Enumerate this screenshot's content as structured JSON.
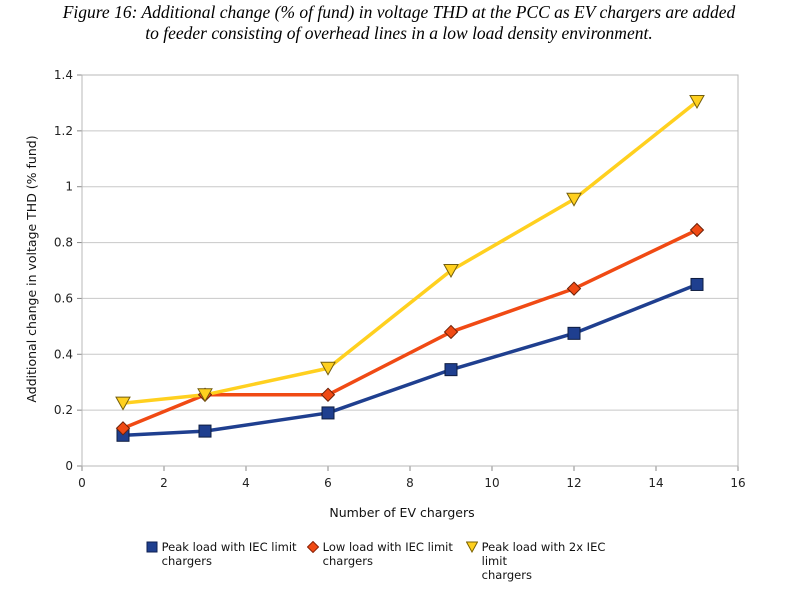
{
  "figure": {
    "caption_line1": "Figure 16: Additional change (% of fund) in voltage THD at the PCC as EV chargers are added",
    "caption_line2": "to feeder consisting of overhead lines in a low load density environment."
  },
  "chart_data": {
    "type": "line",
    "title": "",
    "xlabel": "Number of EV chargers",
    "ylabel": "Additional change in voltage THD (% fund)",
    "xlim": [
      0,
      16
    ],
    "ylim": [
      0,
      1.4
    ],
    "xticks": [
      0,
      2,
      4,
      6,
      8,
      10,
      12,
      14,
      16
    ],
    "yticks": [
      0,
      0.2,
      0.4,
      0.6,
      0.8,
      1,
      1.2,
      1.4
    ],
    "xtick_labels": [
      "0",
      "2",
      "4",
      "6",
      "8",
      "10",
      "12",
      "14",
      "16"
    ],
    "ytick_labels": [
      "0",
      "0.2",
      "0.4",
      "0.6",
      "0.8",
      "1",
      "1.2",
      "1.4"
    ],
    "grid": "horizontal",
    "legend_position": "bottom",
    "x": [
      1,
      3,
      6,
      9,
      12,
      15
    ],
    "series": [
      {
        "name": "Peak load with IEC limit chargers",
        "legend_line1": "Peak load with IEC limit",
        "legend_line2": "chargers",
        "values": [
          0.11,
          0.125,
          0.19,
          0.345,
          0.475,
          0.65
        ],
        "color": "#1f3f8f",
        "marker": "square"
      },
      {
        "name": "Low load with IEC limit chargers",
        "legend_line1": "Low load with IEC limit",
        "legend_line2": "chargers",
        "values": [
          0.135,
          0.255,
          0.255,
          0.48,
          0.635,
          0.845
        ],
        "color": "#f04a14",
        "marker": "diamond"
      },
      {
        "name": "Peak load with 2x IEC limit chargers",
        "legend_line1": "Peak load with 2x IEC limit",
        "legend_line2": "chargers",
        "values": [
          0.225,
          0.255,
          0.35,
          0.7,
          0.955,
          1.305
        ],
        "color": "#ffd01f",
        "marker": "triangle-down"
      }
    ]
  }
}
